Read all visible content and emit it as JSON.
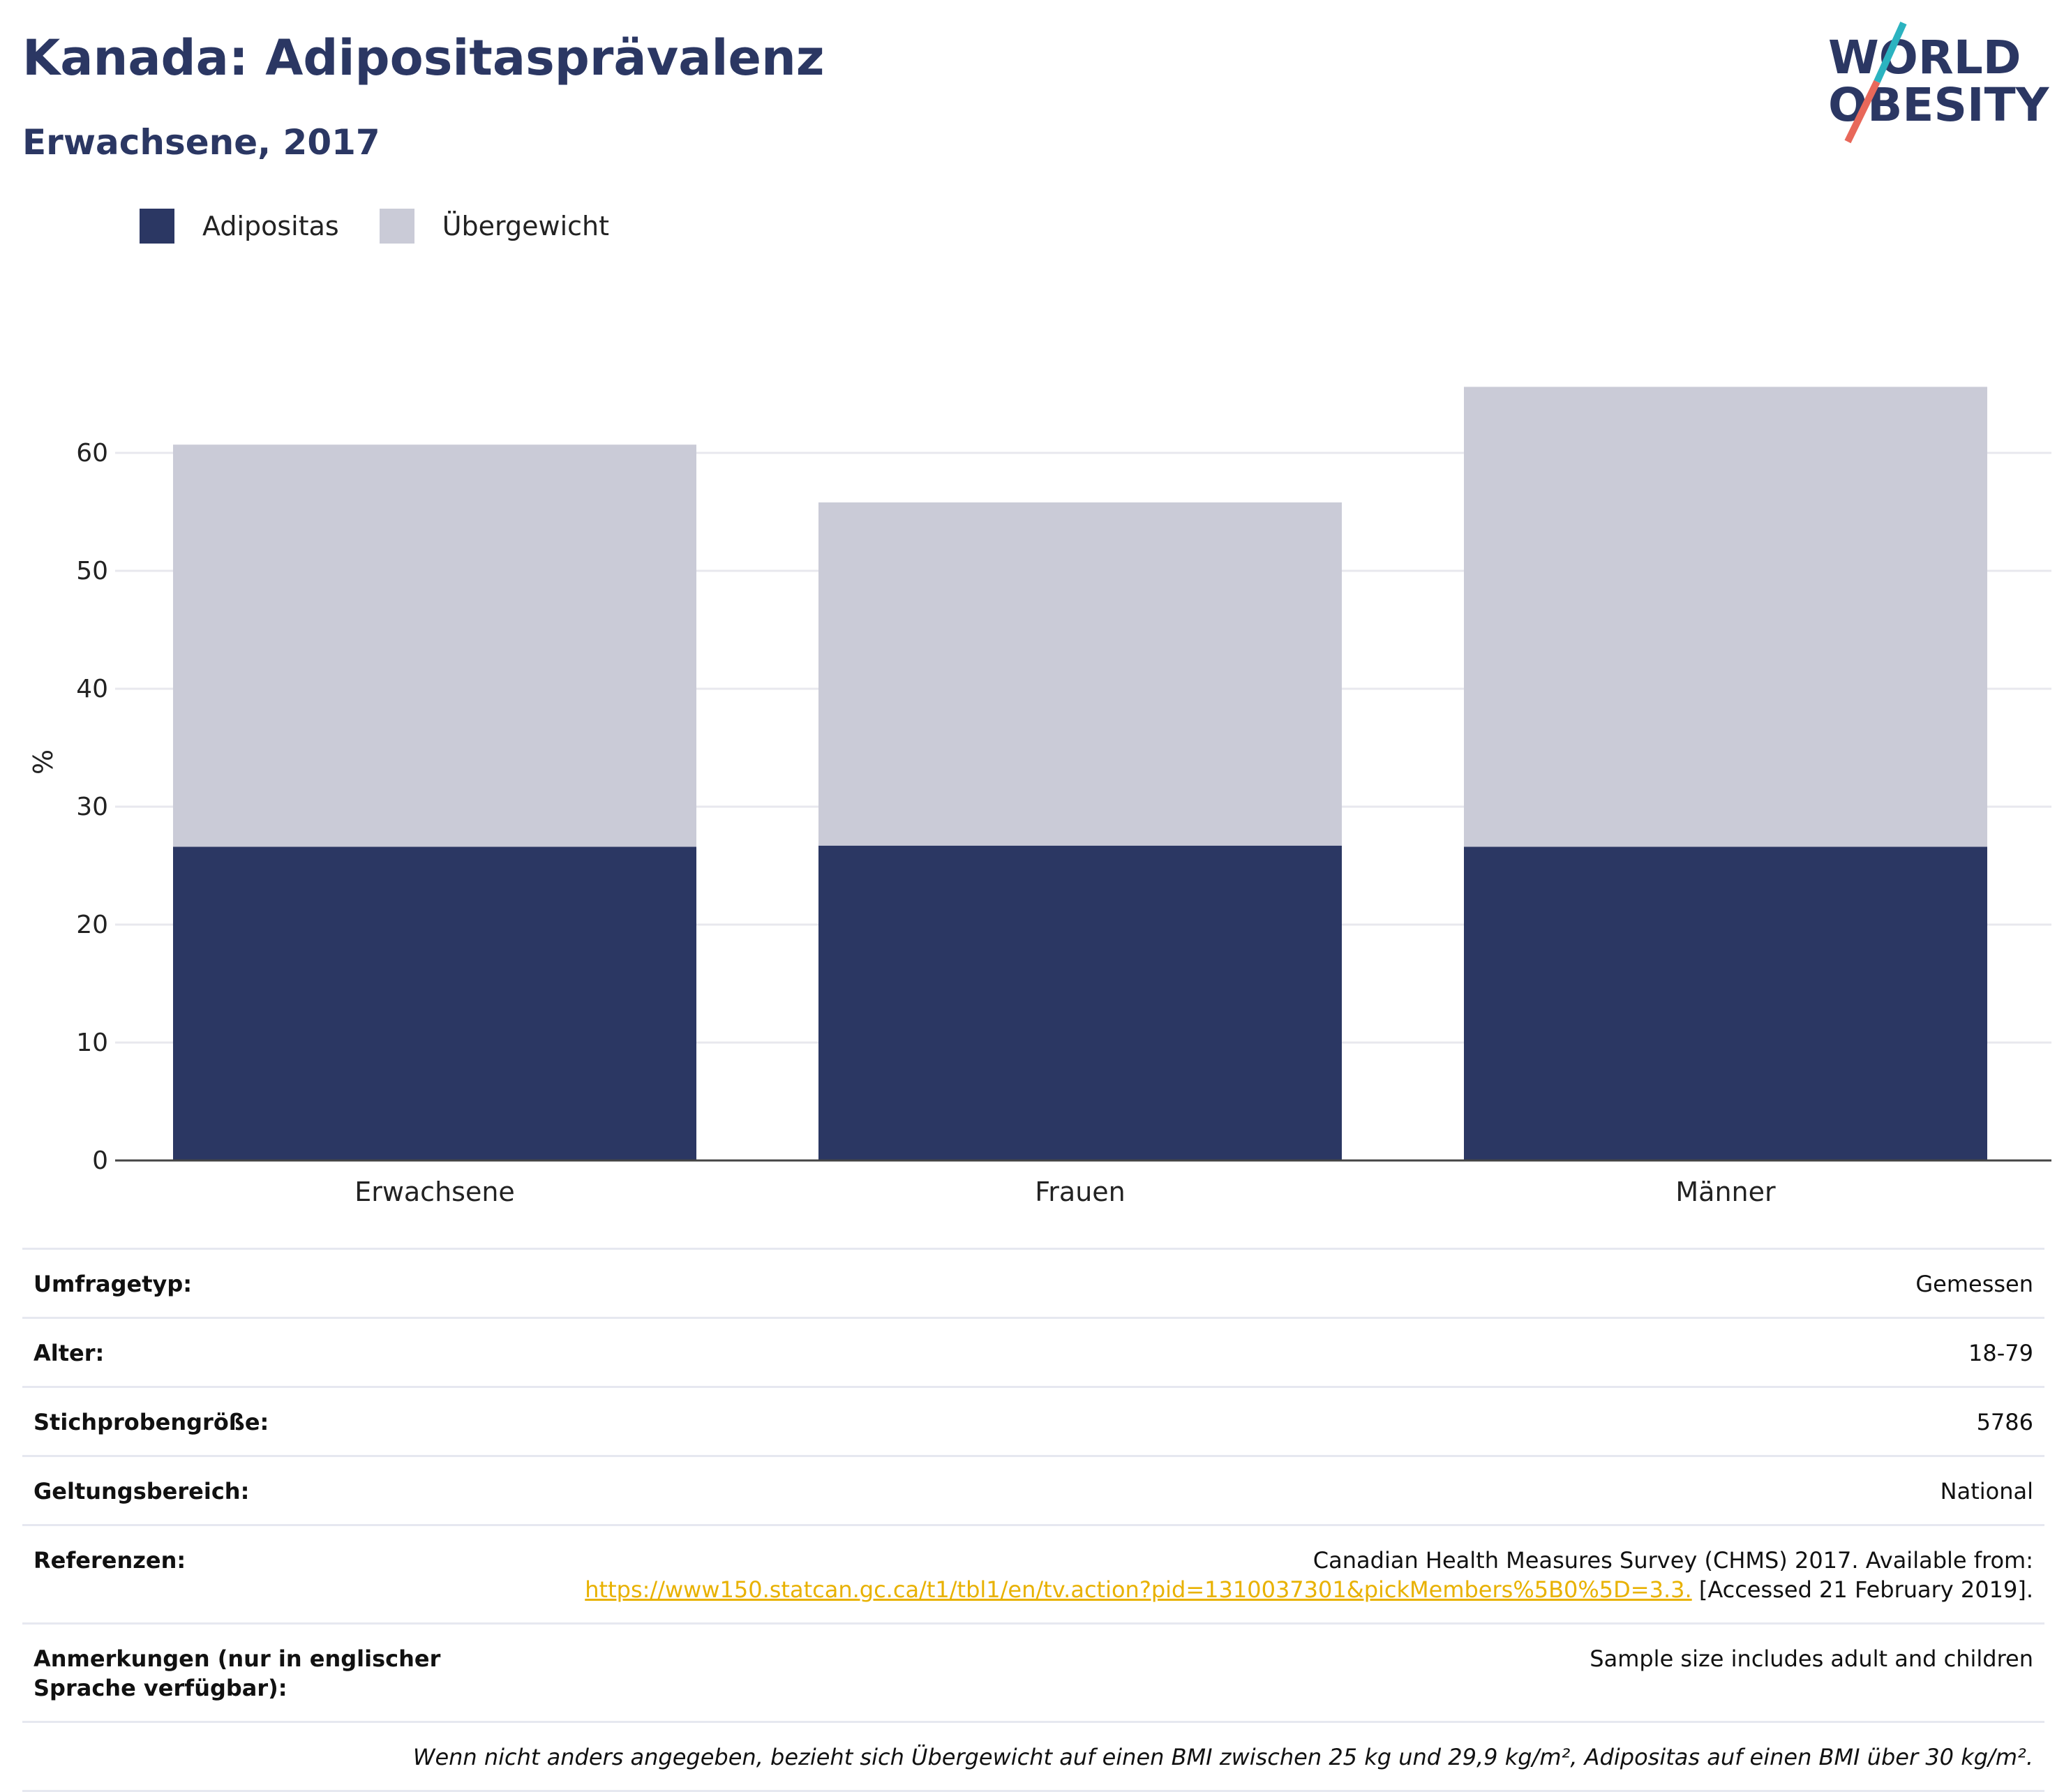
{
  "header": {
    "title": "Kanada: Adipositasprävalenz",
    "subtitle": "Erwachsene, 2017"
  },
  "logo": {
    "line1": "WORLD",
    "line2": "OBESITY",
    "colors": {
      "text": "#2b3763",
      "slash_top": "#2bb3c0",
      "slash_bottom": "#e8685a"
    }
  },
  "colors": {
    "obesity": "#2b3763",
    "overweight": "#cacbd7",
    "grid": "#e8e8ee",
    "axis": "#444444",
    "link": "#e8b100"
  },
  "legend": [
    {
      "label": "Adipositas",
      "color": "#2b3763"
    },
    {
      "label": "Übergewicht",
      "color": "#cacbd7"
    }
  ],
  "chart_data": {
    "type": "bar",
    "stacked": true,
    "categories": [
      "Erwachsene",
      "Frauen",
      "Männer"
    ],
    "series": [
      {
        "name": "Adipositas",
        "values": [
          26.6,
          26.7,
          26.6
        ]
      },
      {
        "name": "Übergewicht",
        "values": [
          34.1,
          29.1,
          39.0
        ]
      }
    ],
    "ylabel": "%",
    "ylim": [
      0,
      72
    ],
    "yticks": [
      0,
      10,
      20,
      30,
      40,
      50,
      60
    ],
    "grid": true,
    "legend_position": "top-left"
  },
  "info": {
    "survey_type": {
      "label": "Umfragetyp:",
      "value": "Gemessen"
    },
    "age": {
      "label": "Alter:",
      "value": "18-79"
    },
    "sample_size": {
      "label": "Stichprobengröße:",
      "value": "5786"
    },
    "scope": {
      "label": "Geltungsbereich:",
      "value": "National"
    },
    "references": {
      "label": "Referenzen:",
      "text": "Canadian Health Measures Survey (CHMS) 2017. Available from:",
      "link": "https://www150.statcan.gc.ca/t1/tbl1/en/tv.action?pid=1310037301&pickMembers%5B0%5D=3.3.",
      "accessed": " [Accessed 21 February 2019]."
    },
    "notes": {
      "label": "Anmerkungen (nur in englischer Sprache verfügbar):",
      "value": "Sample size includes adult and children"
    },
    "footnote": "Wenn nicht anders angegeben, bezieht sich Übergewicht auf einen BMI zwischen 25 kg und 29,9 kg/m², Adipositas auf einen BMI über 30 kg/m²."
  }
}
